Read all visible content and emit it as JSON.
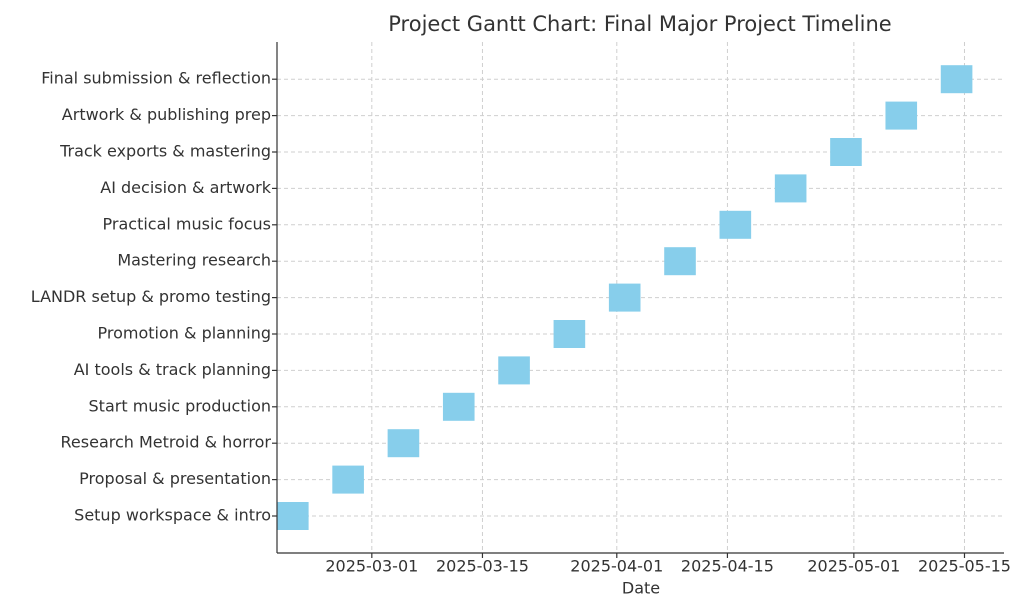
{
  "chart_data": {
    "type": "gantt",
    "title": "Project Gantt Chart: Final Major Project Timeline",
    "x_label": "Date",
    "categories": [
      "Setup workspace & intro",
      "Proposal & presentation",
      "Research Metroid & horror",
      "Start music production",
      "AI tools & track planning",
      "Promotion & planning",
      "LANDR setup & promo testing",
      "Mastering research",
      "Practical music focus",
      "AI decision & artwork",
      "Track exports & mastering",
      "Artwork & publishing prep",
      "Final submission & reflection"
    ],
    "start": [
      "2025-02-17",
      "2025-02-24",
      "2025-03-03",
      "2025-03-10",
      "2025-03-17",
      "2025-03-24",
      "2025-03-31",
      "2025-04-07",
      "2025-04-14",
      "2025-04-21",
      "2025-04-28",
      "2025-05-05",
      "2025-05-12"
    ],
    "end": [
      "2025-02-21",
      "2025-02-28",
      "2025-03-07",
      "2025-03-14",
      "2025-03-21",
      "2025-03-28",
      "2025-04-04",
      "2025-04-11",
      "2025-04-18",
      "2025-04-25",
      "2025-05-02",
      "2025-05-09",
      "2025-05-16"
    ],
    "color": "#87ceeb",
    "xlim": [
      "2025-02-17",
      "2025-05-20"
    ],
    "xticks": [
      "2025-03-01",
      "2025-03-15",
      "2025-04-01",
      "2025-04-15",
      "2025-05-01",
      "2025-05-15"
    ],
    "grid": true
  }
}
